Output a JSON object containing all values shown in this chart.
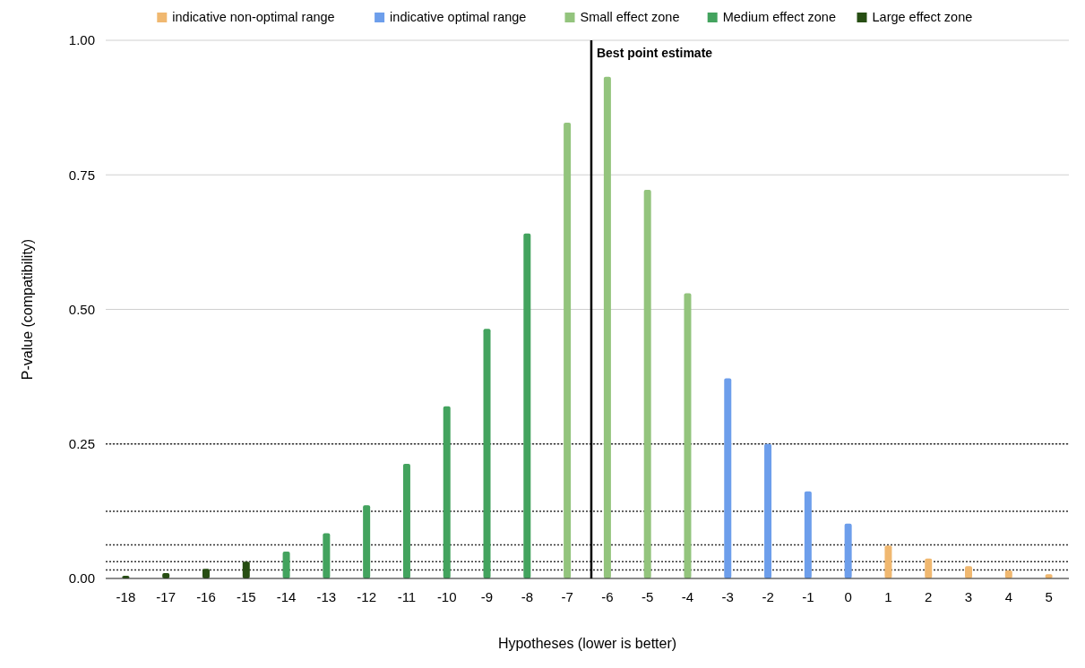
{
  "chart_data": {
    "type": "bar",
    "stacked": true,
    "xlabel": "Hypotheses (lower is better)",
    "ylabel": "P-value (compatibility)",
    "x": [
      -18,
      -17,
      -16,
      -15,
      -14,
      -13,
      -12,
      -11,
      -10,
      -9,
      -8,
      -7,
      -6,
      -5,
      -4,
      -3,
      -2,
      -1,
      0,
      1,
      2,
      3,
      4,
      5
    ],
    "xlim": [
      -18.5,
      5.5
    ],
    "xticks": [
      -18,
      -17,
      -16,
      -15,
      -14,
      -13,
      -12,
      -11,
      -10,
      -9,
      -8,
      -7,
      -6,
      -5,
      -4,
      -3,
      -2,
      -1,
      0,
      1,
      2,
      3,
      4,
      5
    ],
    "ylim": [
      0,
      1
    ],
    "yticks": [
      {
        "value": 0,
        "label": "0.00"
      },
      {
        "value": 0.25,
        "label": "0.25"
      },
      {
        "value": 0.5,
        "label": "0.50"
      },
      {
        "value": 0.75,
        "label": "0.75"
      },
      {
        "value": 1,
        "label": "1.00"
      }
    ],
    "grid": "y",
    "legend": "top",
    "series": [
      {
        "name": "indicative non-optimal range",
        "color": "#f0b870",
        "values": [
          null,
          null,
          null,
          null,
          null,
          null,
          null,
          null,
          null,
          null,
          null,
          null,
          null,
          null,
          null,
          null,
          null,
          null,
          null,
          0.061,
          0.037,
          0.023,
          0.015,
          0.008
        ]
      },
      {
        "name": "indicative optimal range",
        "color": "#6d9eeb",
        "values": [
          null,
          null,
          null,
          null,
          null,
          null,
          null,
          null,
          null,
          null,
          null,
          null,
          null,
          null,
          null,
          0.372,
          0.25,
          0.162,
          0.102,
          null,
          null,
          null,
          null,
          null
        ]
      },
      {
        "name": "Small effect zone",
        "color": "#93c47d",
        "values": [
          null,
          null,
          null,
          null,
          null,
          null,
          null,
          null,
          null,
          null,
          null,
          0.847,
          0.932,
          0.722,
          0.53,
          null,
          null,
          null,
          null,
          null,
          null,
          null,
          null,
          null
        ]
      },
      {
        "name": "Medium effect zone",
        "color": "#43a35e",
        "values": [
          null,
          null,
          null,
          null,
          0.05,
          0.084,
          0.136,
          0.213,
          0.32,
          0.464,
          0.641,
          null,
          null,
          null,
          null,
          null,
          null,
          null,
          null,
          null,
          null,
          null,
          null,
          null
        ]
      },
      {
        "name": "Large effect zone",
        "color": "#274e13",
        "values": [
          0.005,
          0.01,
          0.018,
          0.031,
          null,
          null,
          null,
          null,
          null,
          null,
          null,
          null,
          null,
          null,
          null,
          null,
          null,
          null,
          null,
          null,
          null,
          null,
          null,
          null
        ]
      }
    ],
    "ref_lines": [
      {
        "axis": "x",
        "value": -6.4,
        "label": "Best point estimate",
        "color": "#000000",
        "line_style": "solid"
      },
      {
        "axis": "y",
        "value": 0.25,
        "color": "#333333",
        "line_style": "dotted"
      },
      {
        "axis": "y",
        "value": 0.125,
        "color": "#333333",
        "line_style": "dotted"
      },
      {
        "axis": "y",
        "value": 0.0625,
        "color": "#333333",
        "line_style": "dotted"
      },
      {
        "axis": "y",
        "value": 0.031,
        "color": "#333333",
        "line_style": "dotted"
      },
      {
        "axis": "y",
        "value": 0.016,
        "color": "#333333",
        "line_style": "dotted"
      }
    ]
  }
}
